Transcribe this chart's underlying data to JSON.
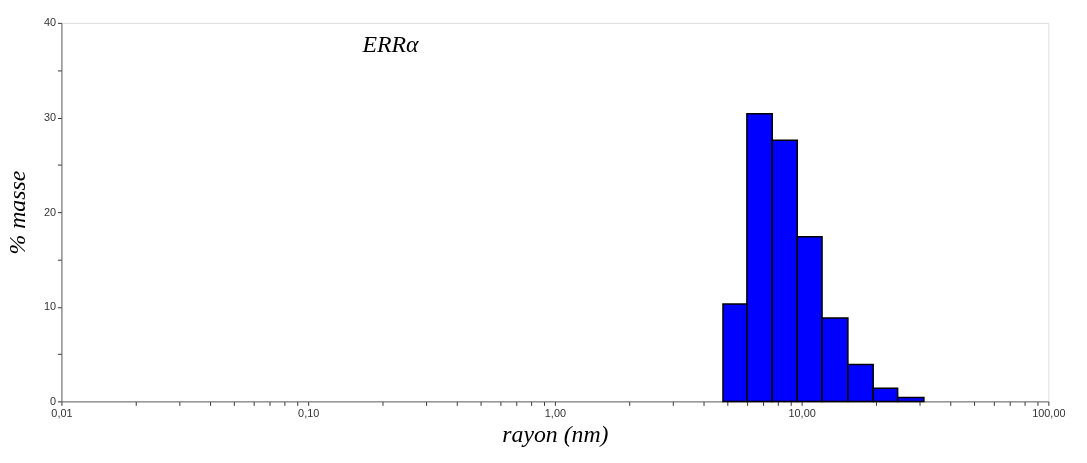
{
  "chart_data": {
    "type": "histogram",
    "title": "ERRα",
    "xlabel": "rayon (nm)",
    "ylabel": "% masse",
    "bins": [
      4.8,
      6.0,
      7.6,
      9.6,
      12.1,
      15.4,
      19.5,
      24.5,
      31.3
    ],
    "values": [
      10.3,
      30.4,
      27.6,
      17.4,
      8.8,
      3.9,
      1.4,
      0.4
    ],
    "color": "#0000ff",
    "log": "x",
    "grid": false,
    "xlim": [
      0.01,
      100
    ],
    "xticks": [
      {
        "value": 0.01,
        "label": "0,01"
      },
      {
        "value": 0.02,
        "label": null
      },
      {
        "value": 0.03,
        "label": null
      },
      {
        "value": 0.04,
        "label": null
      },
      {
        "value": 0.05,
        "label": null
      },
      {
        "value": 0.06,
        "label": null
      },
      {
        "value": 0.07,
        "label": null
      },
      {
        "value": 0.08,
        "label": null
      },
      {
        "value": 0.09,
        "label": null
      },
      {
        "value": 0.1,
        "label": "0,10"
      },
      {
        "value": 0.2,
        "label": null
      },
      {
        "value": 0.3,
        "label": null
      },
      {
        "value": 0.4,
        "label": null
      },
      {
        "value": 0.5,
        "label": null
      },
      {
        "value": 0.6,
        "label": null
      },
      {
        "value": 0.7,
        "label": null
      },
      {
        "value": 0.8,
        "label": null
      },
      {
        "value": 0.9,
        "label": null
      },
      {
        "value": 1,
        "label": "1,00"
      },
      {
        "value": 2,
        "label": null
      },
      {
        "value": 3,
        "label": null
      },
      {
        "value": 4,
        "label": null
      },
      {
        "value": 5,
        "label": null
      },
      {
        "value": 6,
        "label": null
      },
      {
        "value": 7,
        "label": null
      },
      {
        "value": 8,
        "label": null
      },
      {
        "value": 9,
        "label": null
      },
      {
        "value": 10,
        "label": "10,00"
      },
      {
        "value": 20,
        "label": null
      },
      {
        "value": 30,
        "label": null
      },
      {
        "value": 40,
        "label": null
      },
      {
        "value": 50,
        "label": null
      },
      {
        "value": 60,
        "label": null
      },
      {
        "value": 70,
        "label": null
      },
      {
        "value": 80,
        "label": null
      },
      {
        "value": 90,
        "label": null
      },
      {
        "value": 100,
        "label": "100,00"
      }
    ],
    "ylim": [
      0,
      40
    ],
    "yticks": [
      0,
      {
        "value": 5,
        "label": null
      },
      10,
      {
        "value": 15,
        "label": null
      },
      20,
      {
        "value": 25,
        "label": null
      },
      30,
      {
        "value": 35,
        "label": null
      },
      40
    ]
  }
}
